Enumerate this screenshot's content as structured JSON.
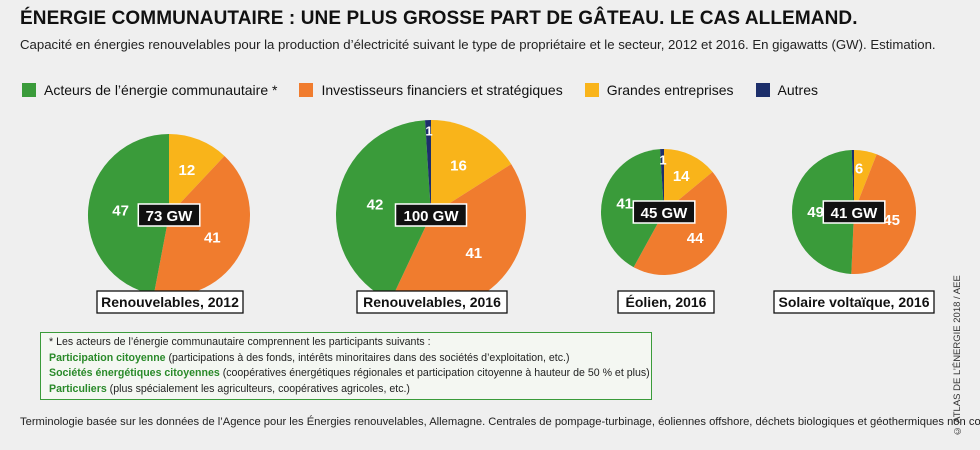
{
  "title": "ÉNERGIE COMMUNAUTAIRE : UNE PLUS GROSSE PART DE GÂTEAU. LE CAS ALLEMAND.",
  "subtitle": "Capacité en énergies renouvelables pour la production d’électricité suivant le type de propriétaire et le secteur, 2012 et 2016. En gigawatts (GW). Estimation.",
  "legend": [
    {
      "label": "Acteurs de l’énergie communautaire *",
      "color": "#3a9b3a"
    },
    {
      "label": "Investisseurs financiers et stratégiques",
      "color": "#f07c2e"
    },
    {
      "label": "Grandes entreprises",
      "color": "#f9b41a"
    },
    {
      "label": "Autres",
      "color": "#1d2f6b"
    }
  ],
  "chart_data": [
    {
      "type": "pie",
      "title": "Renouvelables, 2012",
      "total_label": "73 GW",
      "categories": [
        "Acteurs de l’énergie communautaire",
        "Investisseurs financiers et stratégiques",
        "Grandes entreprises",
        "Autres"
      ],
      "values": [
        47,
        41,
        12,
        0
      ],
      "labels": [
        "47",
        "41",
        "12",
        ""
      ]
    },
    {
      "type": "pie",
      "title": "Renouvelables, 2016",
      "total_label": "100 GW",
      "categories": [
        "Acteurs de l’énergie communautaire",
        "Investisseurs financiers et stratégiques",
        "Grandes entreprises",
        "Autres"
      ],
      "values": [
        42,
        41,
        16,
        1
      ],
      "labels": [
        "42",
        "41",
        "16",
        "1"
      ]
    },
    {
      "type": "pie",
      "title": "Éolien, 2016",
      "total_label": "45 GW",
      "categories": [
        "Acteurs de l’énergie communautaire",
        "Investisseurs financiers et stratégiques",
        "Grandes entreprises",
        "Autres"
      ],
      "values": [
        41,
        44,
        14,
        1
      ],
      "labels": [
        "41",
        "44",
        "14",
        "1"
      ]
    },
    {
      "type": "pie",
      "title": "Solaire voltaïque, 2016",
      "total_label": "41 GW",
      "categories": [
        "Acteurs de l’énergie communautaire",
        "Investisseurs financiers et stratégiques",
        "Grandes entreprises",
        "Autres"
      ],
      "values": [
        49,
        45,
        6,
        0.6
      ],
      "labels": [
        "49",
        "45",
        "6",
        ""
      ]
    }
  ],
  "note": {
    "intro": "* Les acteurs de l’énergie communautaire comprennent les participants suivants :",
    "items": [
      {
        "term": "Participation citoyenne",
        "text": "(participations à des fonds, intérêts minoritaires dans des sociétés d’exploitation, etc.)"
      },
      {
        "term": "Sociétés énergétiques citoyennes",
        "text": "(coopératives énergétiques régionales et participation citoyenne à hauteur de 50 % et plus)"
      },
      {
        "term": "Particuliers",
        "text": "(plus spécialement les agriculteurs, coopératives agricoles, etc.)"
      }
    ]
  },
  "footer": "Terminologie basée sur les données de l’Agence pour les Énergies renouvelables, Allemagne. Centrales de pompage-turbinage, éoliennes offshore, déchets biologiques et géothermiques non compris.",
  "credit": "© ATLAS DE L’ÉNERGIE 2018 / AEE"
}
